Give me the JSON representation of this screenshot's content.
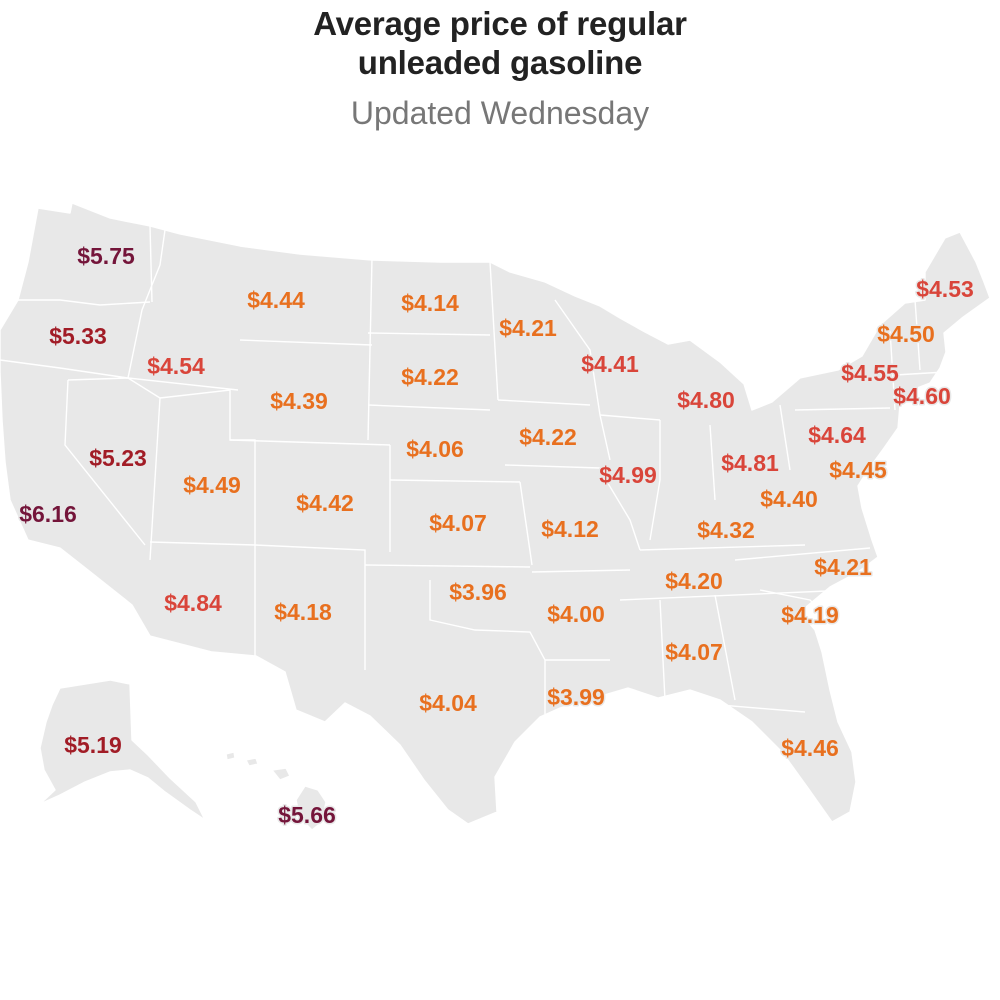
{
  "header": {
    "title_line1": "Average price of regular",
    "title_line2": "unleaded gasoline",
    "subtitle": "Updated Wednesday"
  },
  "colors": {
    "land": "#e8e8e8",
    "border": "#ffffff",
    "tier_low": "#e8701f",
    "tier_mid": "#d9453a",
    "tier_high": "#a11c26",
    "tier_top": "#74153a"
  },
  "chart_data": {
    "type": "choropleth-labels",
    "title": "Average price of regular unleaded gasoline",
    "subtitle": "Updated Wednesday",
    "unit": "USD per gallon",
    "states": [
      {
        "state": "WA",
        "price": 5.75,
        "label": "$5.75",
        "tier": "top"
      },
      {
        "state": "OR",
        "price": 5.33,
        "label": "$5.33",
        "tier": "high"
      },
      {
        "state": "CA",
        "price": 6.16,
        "label": "$6.16",
        "tier": "top"
      },
      {
        "state": "NV",
        "price": 5.23,
        "label": "$5.23",
        "tier": "high"
      },
      {
        "state": "ID",
        "price": 4.54,
        "label": "$4.54",
        "tier": "mid"
      },
      {
        "state": "MT",
        "price": 4.44,
        "label": "$4.44",
        "tier": "low"
      },
      {
        "state": "WY",
        "price": 4.39,
        "label": "$4.39",
        "tier": "low"
      },
      {
        "state": "UT",
        "price": 4.49,
        "label": "$4.49",
        "tier": "low"
      },
      {
        "state": "CO",
        "price": 4.42,
        "label": "$4.42",
        "tier": "low"
      },
      {
        "state": "AZ",
        "price": 4.84,
        "label": "$4.84",
        "tier": "mid"
      },
      {
        "state": "NM",
        "price": 4.18,
        "label": "$4.18",
        "tier": "low"
      },
      {
        "state": "ND",
        "price": 4.14,
        "label": "$4.14",
        "tier": "low"
      },
      {
        "state": "SD",
        "price": 4.22,
        "label": "$4.22",
        "tier": "low"
      },
      {
        "state": "NE",
        "price": 4.06,
        "label": "$4.06",
        "tier": "low"
      },
      {
        "state": "KS",
        "price": 4.07,
        "label": "$4.07",
        "tier": "low"
      },
      {
        "state": "OK",
        "price": 3.96,
        "label": "$3.96",
        "tier": "low"
      },
      {
        "state": "TX",
        "price": 4.04,
        "label": "$4.04",
        "tier": "low"
      },
      {
        "state": "MN",
        "price": 4.21,
        "label": "$4.21",
        "tier": "low"
      },
      {
        "state": "IA",
        "price": 4.22,
        "label": "$4.22",
        "tier": "low"
      },
      {
        "state": "MO",
        "price": 4.12,
        "label": "$4.12",
        "tier": "low"
      },
      {
        "state": "AR",
        "price": 4.0,
        "label": "$4.00",
        "tier": "low"
      },
      {
        "state": "LA",
        "price": 3.99,
        "label": "$3.99",
        "tier": "low"
      },
      {
        "state": "WI",
        "price": 4.41,
        "label": "$4.41",
        "tier": "mid"
      },
      {
        "state": "IL",
        "price": 4.99,
        "label": "$4.99",
        "tier": "mid"
      },
      {
        "state": "MI",
        "price": 4.8,
        "label": "$4.80",
        "tier": "mid"
      },
      {
        "state": "IN",
        "price": 4.81,
        "label": "$4.81",
        "tier": "mid"
      },
      {
        "state": "OH",
        "price": 4.64,
        "label": "$4.64",
        "tier": "mid"
      },
      {
        "state": "KY",
        "price": 4.32,
        "label": "$4.32",
        "tier": "low"
      },
      {
        "state": "TN",
        "price": 4.2,
        "label": "$4.20",
        "tier": "low"
      },
      {
        "state": "AL",
        "price": 4.07,
        "label": "$4.07",
        "tier": "low"
      },
      {
        "state": "FL",
        "price": 4.46,
        "label": "$4.46",
        "tier": "low"
      },
      {
        "state": "SC",
        "price": 4.19,
        "label": "$4.19",
        "tier": "low"
      },
      {
        "state": "NC",
        "price": 4.21,
        "label": "$4.21",
        "tier": "low"
      },
      {
        "state": "VA",
        "price": 4.4,
        "label": "$4.40",
        "tier": "low"
      },
      {
        "state": "PA",
        "price": 4.45,
        "label": "$4.45",
        "tier": "low"
      },
      {
        "state": "NY",
        "price": 4.55,
        "label": "$4.55",
        "tier": "mid"
      },
      {
        "state": "VT",
        "price": 4.5,
        "label": "$4.50",
        "tier": "low"
      },
      {
        "state": "ME",
        "price": 4.53,
        "label": "$4.53",
        "tier": "mid"
      },
      {
        "state": "MA",
        "price": 4.6,
        "label": "$4.60",
        "tier": "mid"
      },
      {
        "state": "AK",
        "price": 5.19,
        "label": "$5.19",
        "tier": "high"
      },
      {
        "state": "HI",
        "price": 5.66,
        "label": "$5.66",
        "tier": "top"
      }
    ]
  }
}
